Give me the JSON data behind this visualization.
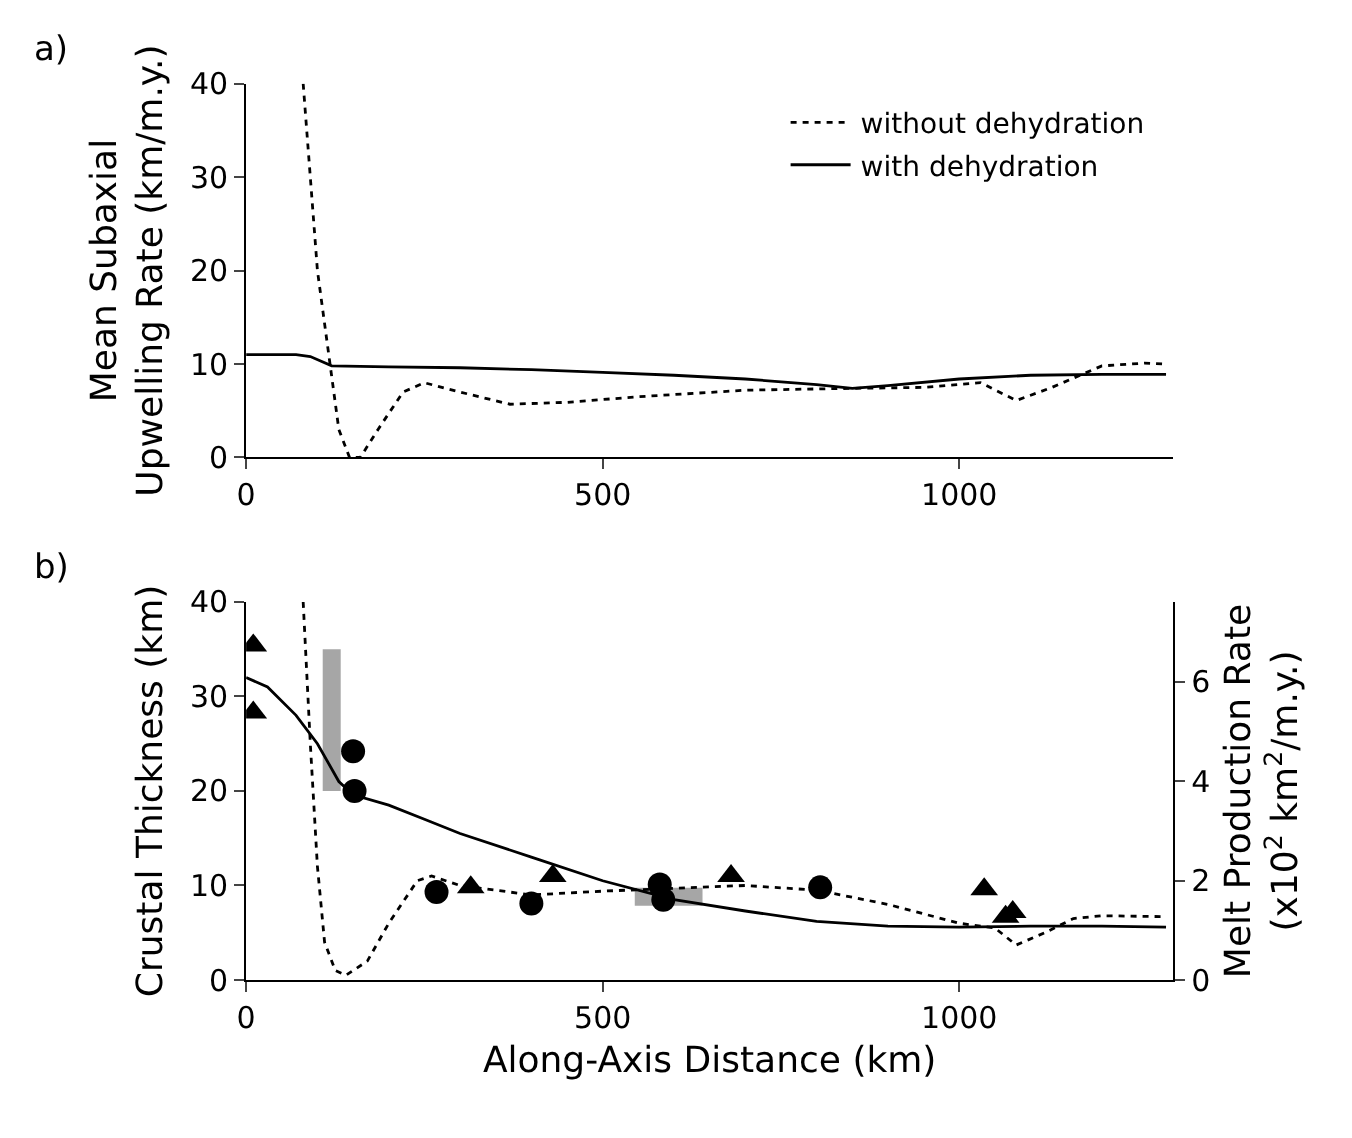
{
  "chart_data": [
    {
      "type": "line",
      "ylabel": "Mean Subaxial\nUpwelling Rate (km/m.y.)",
      "annotations": [
        "a)"
      ],
      "xlim": [
        0,
        1300
      ],
      "xticks": [
        0,
        500,
        1000
      ],
      "ylim": [
        0,
        40
      ],
      "yticks": [
        0,
        10,
        20,
        30,
        40
      ],
      "legend": "top right",
      "marker": "none",
      "series": [
        {
          "name": "without dehydration",
          "color": "#000000",
          "line_style": "dotted",
          "x": [
            80,
            100,
            130,
            145,
            160,
            185,
            220,
            250,
            300,
            370,
            450,
            550,
            700,
            850,
            950,
            1030,
            1080,
            1130,
            1200,
            1260,
            1290
          ],
          "values": [
            40,
            20,
            3,
            0,
            0,
            3,
            7,
            8,
            7,
            5.7,
            5.9,
            6.5,
            7.2,
            7.4,
            7.5,
            8,
            6.1,
            7.5,
            9.8,
            10.1,
            10
          ]
        },
        {
          "name": "with dehydration",
          "color": "#000000",
          "line_style": "solid",
          "x": [
            0,
            70,
            90,
            120,
            200,
            300,
            400,
            500,
            600,
            700,
            800,
            850,
            900,
            1000,
            1100,
            1200,
            1290
          ],
          "values": [
            11,
            11,
            10.8,
            9.8,
            9.7,
            9.6,
            9.4,
            9.1,
            8.8,
            8.4,
            7.8,
            7.4,
            7.7,
            8.4,
            8.8,
            8.9,
            8.9
          ]
        }
      ]
    },
    {
      "type": "line",
      "xlabel": "Along-Axis Distance (km)",
      "ylabel": "Crustal Thickness (km)",
      "y2label": "Melt Production Rate\n(x10$^{2}$ km$^{2}$/m.y.)",
      "annotations": [
        "b)"
      ],
      "xlim": [
        0,
        1300
      ],
      "xticks": [
        0,
        500,
        1000
      ],
      "ylim": [
        0,
        40
      ],
      "yticks": [
        0,
        10,
        20,
        30,
        40
      ],
      "y2lim": [
        0,
        7.6
      ],
      "y2ticks": [
        0,
        2,
        4,
        6
      ],
      "legend": false,
      "marker": "none",
      "series": [
        {
          "color": "#a6a6a6",
          "line_style": "solid",
          "x": [
            120,
            120
          ],
          "values": [
            20,
            35
          ]
        },
        {
          "color": "#a6a6a6",
          "line_style": "solid",
          "x": [
            545,
            640
          ],
          "values": [
            8.8,
            8.8
          ]
        },
        {
          "color": "#000000",
          "line_style": "dotted",
          "x": [
            80,
            90,
            100,
            110,
            125,
            140,
            170,
            200,
            240,
            260,
            300,
            400,
            500,
            600,
            700,
            800,
            900,
            1000,
            1050,
            1080,
            1120,
            1160,
            1200,
            1290
          ],
          "values": [
            40,
            25,
            12,
            4,
            1,
            0.5,
            2,
            6,
            10.5,
            11,
            10,
            9,
            9.4,
            9.7,
            10,
            9.5,
            8,
            6,
            5.5,
            3.7,
            5,
            6.5,
            6.8,
            6.7
          ]
        },
        {
          "color": "#000000",
          "line_style": "solid",
          "x": [
            0,
            30,
            70,
            100,
            130,
            150,
            200,
            250,
            300,
            400,
            500,
            600,
            700,
            800,
            900,
            1000,
            1100,
            1200,
            1290
          ],
          "values": [
            32,
            31,
            28,
            25,
            21,
            19.6,
            18.5,
            17,
            15.5,
            13,
            10.5,
            8.5,
            7.3,
            6.2,
            5.7,
            5.6,
            5.7,
            5.7,
            5.6
          ]
        },
        {
          "type": "scatter",
          "marker": "triangle",
          "color": "#000000",
          "x": [
            10,
            10,
            315,
            430,
            680,
            805,
            1035,
            1065,
            1075
          ],
          "values": [
            35.4,
            28.3,
            9.8,
            11,
            11,
            null,
            9.6,
            6.7,
            7.2
          ]
        },
        {
          "type": "scatter",
          "marker": "circle",
          "color": "#000000",
          "x": [
            150,
            152,
            267,
            400,
            580,
            585,
            805
          ],
          "values": [
            24.2,
            20,
            9.3,
            8.1,
            10.1,
            8.5,
            9.8
          ]
        }
      ]
    }
  ]
}
